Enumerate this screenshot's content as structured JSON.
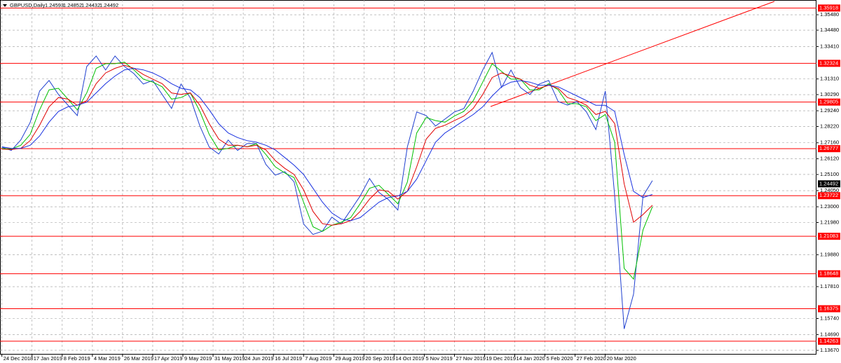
{
  "chart_data": {
    "type": "line",
    "title": "GBPUSD,Daily",
    "ohlc": [
      1.24593,
      1.24852,
      1.24432,
      1.24492
    ],
    "current_price": 1.24492,
    "levels": [
      1.35918,
      1.32324,
      1.29805,
      1.26777,
      1.23722,
      1.21083,
      1.18648,
      1.16375,
      1.14263
    ],
    "level_color": "#ff0000",
    "xlim": [
      -1,
      432
    ],
    "ylim": [
      1.1344,
      1.3644
    ],
    "grid": true,
    "xticks": [
      {
        "value": 0,
        "label": "24 Dec 2018"
      },
      {
        "value": 16,
        "label": "17 Jan 2019"
      },
      {
        "value": 32,
        "label": "8 Feb 2019"
      },
      {
        "value": 48,
        "label": "4 Mar 2019"
      },
      {
        "value": 64,
        "label": "26 Mar 2019"
      },
      {
        "value": 80,
        "label": "17 Apr 2019"
      },
      {
        "value": 96,
        "label": "9 May 2019"
      },
      {
        "value": 112,
        "label": "31 May 2019"
      },
      {
        "value": 128,
        "label": "24 Jun 2019"
      },
      {
        "value": 144,
        "label": "16 Jul 2019"
      },
      {
        "value": 160,
        "label": "7 Aug 2019"
      },
      {
        "value": 176,
        "label": "29 Aug 2019"
      },
      {
        "value": 192,
        "label": "20 Sep 2019"
      },
      {
        "value": 208,
        "label": "14 Oct 2019"
      },
      {
        "value": 224,
        "label": "5 Nov 2019"
      },
      {
        "value": 240,
        "label": "27 Nov 2019"
      },
      {
        "value": 256,
        "label": "19 Dec 2019"
      },
      {
        "value": 272,
        "label": "14 Jan 2020"
      },
      {
        "value": 288,
        "label": "5 Feb 2020"
      },
      {
        "value": 304,
        "label": "27 Feb 2020"
      },
      {
        "value": 320,
        "label": "20 Mar 2020"
      }
    ],
    "yticks": [
      {
        "value": 1.3548,
        "label": "1.35480"
      },
      {
        "value": 1.3448,
        "label": "1.34480"
      },
      {
        "value": 1.3341,
        "label": "1.33410"
      },
      {
        "value": 1.3131,
        "label": "1.31310"
      },
      {
        "value": 1.3029,
        "label": "1.30290"
      },
      {
        "value": 1.2924,
        "label": "1.29240"
      },
      {
        "value": 1.2822,
        "label": "1.28220"
      },
      {
        "value": 1.2716,
        "label": "1.27160"
      },
      {
        "value": 1.2612,
        "label": "1.26120"
      },
      {
        "value": 1.251,
        "label": "1.25100"
      },
      {
        "value": 1.2405,
        "label": "1.24050"
      },
      {
        "value": 1.23,
        "label": "1.23000"
      },
      {
        "value": 1.2198,
        "label": "1.21980"
      },
      {
        "value": 1.1988,
        "label": "1.19880"
      },
      {
        "value": 1.1781,
        "label": "1.17810"
      },
      {
        "value": 1.1574,
        "label": "1.15740"
      },
      {
        "value": 1.1469,
        "label": "1.14690"
      },
      {
        "value": 1.1367,
        "label": "1.13670"
      }
    ],
    "x": [
      0,
      5,
      10,
      15,
      20,
      25,
      30,
      35,
      40,
      45,
      50,
      55,
      60,
      65,
      70,
      75,
      80,
      85,
      90,
      95,
      100,
      105,
      110,
      115,
      120,
      125,
      130,
      135,
      140,
      145,
      150,
      155,
      160,
      165,
      170,
      175,
      180,
      185,
      190,
      195,
      200,
      205,
      210,
      215,
      220,
      225,
      230,
      235,
      240,
      245,
      250,
      255,
      260,
      265,
      270,
      275,
      280,
      285,
      290,
      295,
      300,
      305,
      310,
      315,
      320,
      325,
      330,
      335,
      340,
      345
    ],
    "series": [
      {
        "color": "#2040d0",
        "values": [
          1.2688,
          1.2666,
          1.2734,
          1.2848,
          1.3052,
          1.3121,
          1.303,
          1.2961,
          1.2893,
          1.3212,
          1.328,
          1.3189,
          1.328,
          1.3212,
          1.3166,
          1.3098,
          1.3121,
          1.303,
          1.2939,
          1.3098,
          1.3007,
          1.2825,
          1.2688,
          1.2643,
          1.2734,
          1.2666,
          1.2711,
          1.2711,
          1.2575,
          1.2506,
          1.2529,
          1.2461,
          1.2188,
          1.212,
          1.2142,
          1.2233,
          1.2188,
          1.2279,
          1.237,
          1.2484,
          1.2393,
          1.2347,
          1.2279,
          1.2688,
          1.2916,
          1.2893,
          1.2825,
          1.287,
          1.2916,
          1.2939,
          1.3052,
          1.3189,
          1.3303,
          1.3075,
          1.3189,
          1.3075,
          1.303,
          1.3098,
          1.3121,
          1.2984,
          1.2961,
          1.2984,
          1.2916,
          1.2802,
          1.3052,
          1.237,
          1.1506,
          1.1733,
          1.237,
          1.247
        ]
      },
      {
        "color": "#00c000",
        "values": [
          1.268,
          1.2675,
          1.27,
          1.277,
          1.293,
          1.306,
          1.307,
          1.3,
          1.293,
          1.304,
          1.32,
          1.323,
          1.323,
          1.324,
          1.319,
          1.313,
          1.311,
          1.308,
          1.3,
          1.301,
          1.304,
          1.292,
          1.277,
          1.267,
          1.268,
          1.27,
          1.269,
          1.271,
          1.264,
          1.256,
          1.252,
          1.249,
          1.233,
          1.217,
          1.214,
          1.218,
          1.22,
          1.223,
          1.232,
          1.242,
          1.244,
          1.238,
          1.232,
          1.246,
          1.278,
          1.288,
          1.286,
          1.285,
          1.289,
          1.292,
          1.299,
          1.311,
          1.323,
          1.318,
          1.313,
          1.313,
          1.306,
          1.306,
          1.31,
          1.306,
          1.297,
          1.297,
          1.295,
          1.286,
          1.29,
          1.272,
          1.19,
          1.183,
          1.215,
          1.23
        ]
      },
      {
        "color": "#e00000",
        "values": [
          1.2675,
          1.2672,
          1.268,
          1.273,
          1.283,
          1.295,
          1.301,
          1.3,
          1.296,
          1.299,
          1.31,
          1.317,
          1.32,
          1.322,
          1.32,
          1.316,
          1.313,
          1.31,
          1.304,
          1.303,
          1.304,
          1.296,
          1.284,
          1.274,
          1.27,
          1.27,
          1.269,
          1.27,
          1.267,
          1.26,
          1.255,
          1.251,
          1.241,
          1.227,
          1.219,
          1.218,
          1.219,
          1.221,
          1.227,
          1.235,
          1.241,
          1.24,
          1.235,
          1.24,
          1.256,
          1.274,
          1.281,
          1.283,
          1.286,
          1.289,
          1.294,
          1.303,
          1.314,
          1.317,
          1.315,
          1.313,
          1.309,
          1.307,
          1.309,
          1.307,
          1.301,
          1.299,
          1.296,
          1.29,
          1.292,
          1.284,
          1.245,
          1.22,
          1.225,
          1.231
        ]
      },
      {
        "color": "#1830e0",
        "values": [
          1.269,
          1.268,
          1.268,
          1.27,
          1.276,
          1.285,
          1.292,
          1.295,
          1.296,
          1.298,
          1.304,
          1.31,
          1.315,
          1.319,
          1.32,
          1.319,
          1.317,
          1.314,
          1.31,
          1.307,
          1.306,
          1.301,
          1.293,
          1.284,
          1.278,
          1.275,
          1.273,
          1.272,
          1.27,
          1.267,
          1.262,
          1.257,
          1.251,
          1.242,
          1.233,
          1.226,
          1.222,
          1.221,
          1.223,
          1.228,
          1.233,
          1.236,
          1.237,
          1.24,
          1.248,
          1.26,
          1.272,
          1.278,
          1.282,
          1.286,
          1.29,
          1.295,
          1.302,
          1.308,
          1.311,
          1.312,
          1.311,
          1.309,
          1.309,
          1.308,
          1.305,
          1.302,
          1.299,
          1.296,
          1.296,
          1.292,
          1.264,
          1.24,
          1.236,
          1.238
        ]
      }
    ]
  }
}
